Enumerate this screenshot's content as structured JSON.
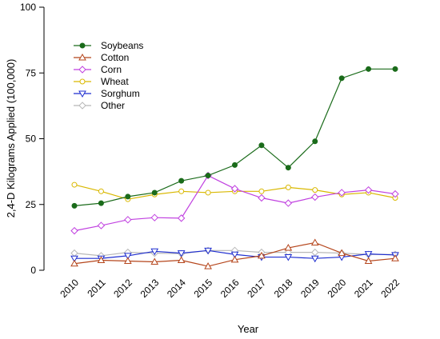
{
  "chart_data": {
    "type": "line",
    "title": "",
    "xlabel": "Year",
    "ylabel": "2,4-D Kilograms Applied (100,000)",
    "ylim": [
      0,
      100
    ],
    "yticks": [
      0,
      25,
      50,
      75,
      100
    ],
    "x": [
      "2010",
      "2011",
      "2012",
      "2013",
      "2014",
      "2015",
      "2016",
      "2017",
      "2018",
      "2019",
      "2020",
      "2021",
      "2022"
    ],
    "grid": false,
    "legend_position": "top-left",
    "series": [
      {
        "name": "Soybeans",
        "color": "#1a6b1a",
        "marker": "filled-circle",
        "values": [
          24.5,
          25.5,
          28,
          29.5,
          34,
          36,
          40,
          47.5,
          39,
          49,
          73,
          76.5,
          76.5
        ]
      },
      {
        "name": "Cotton",
        "color": "#b5451b",
        "marker": "triangle-up",
        "values": [
          2.5,
          3.8,
          3.5,
          3.2,
          3.8,
          1.5,
          4,
          5.5,
          8.5,
          10.5,
          6.5,
          3.5,
          4.5
        ]
      },
      {
        "name": "Corn",
        "color": "#c040e0",
        "marker": "diamond",
        "values": [
          15,
          17,
          19.2,
          20,
          19.8,
          36,
          31,
          27.5,
          25.5,
          27.8,
          29.5,
          30.5,
          29
        ]
      },
      {
        "name": "Wheat",
        "color": "#d9b800",
        "marker": "circle",
        "values": [
          32.5,
          30,
          27,
          28.8,
          30,
          29.5,
          30,
          30,
          31.5,
          30.5,
          28.8,
          29.5,
          27.5
        ]
      },
      {
        "name": "Sorghum",
        "color": "#1f2ed0",
        "marker": "triangle-down",
        "values": [
          4.5,
          4.5,
          5.5,
          7.2,
          6.5,
          7.5,
          6,
          5,
          5,
          4.5,
          5,
          6.2,
          5.8
        ]
      },
      {
        "name": "Other",
        "color": "#b8b8b8",
        "marker": "diamond",
        "values": [
          6.5,
          5.5,
          6.8,
          6.5,
          6.3,
          7.5,
          7.5,
          6.8,
          6.8,
          6.8,
          6.5,
          6,
          6
        ]
      }
    ]
  }
}
